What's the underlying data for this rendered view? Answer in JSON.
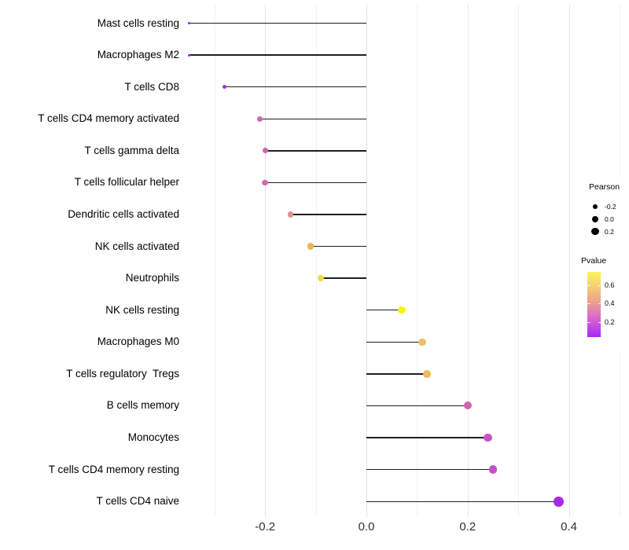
{
  "chart_data": {
    "type": "lollipop",
    "title": "",
    "xlabel": "",
    "ylabel": "",
    "grid": "vertical-only, light gray on white, no panel border, no axis lines",
    "x_axis": {
      "major_ticks": [
        {
          "label": "-0.2",
          "value": -0.2
        },
        {
          "label": "0.0",
          "value": 0.0
        },
        {
          "label": "0.2",
          "value": 0.2
        },
        {
          "label": "0.4",
          "value": 0.4
        }
      ],
      "minor_ticks": [
        -0.3,
        -0.1,
        0.1,
        0.3,
        0.5
      ],
      "xlim": [
        -0.37,
        0.52
      ]
    },
    "rows": [
      {
        "label": "Mast cells resting",
        "pearson": -0.35,
        "pvalue": 0.07,
        "color": "#9B2BE0",
        "radius": 1.4
      },
      {
        "label": "Macrophages M2",
        "pearson": -0.35,
        "pvalue": 0.07,
        "color": "#982BE0",
        "radius": 1.5
      },
      {
        "label": "T cells CD8",
        "pearson": -0.28,
        "pvalue": 0.09,
        "color": "#A032E2",
        "radius": 2.7
      },
      {
        "label": "T cells CD4 memory activated",
        "pearson": -0.21,
        "pvalue": 0.28,
        "color": "#CF64B8",
        "radius": 3.6
      },
      {
        "label": "T cells gamma delta",
        "pearson": -0.2,
        "pvalue": 0.28,
        "color": "#CB62B6",
        "radius": 3.6
      },
      {
        "label": "T cells follicular helper",
        "pearson": -0.2,
        "pvalue": 0.3,
        "color": "#D06CB4",
        "radius": 3.8
      },
      {
        "label": "Dendritic cells activated",
        "pearson": -0.15,
        "pvalue": 0.44,
        "color": "#E2908D",
        "radius": 3.9
      },
      {
        "label": "NK cells activated",
        "pearson": -0.11,
        "pvalue": 0.53,
        "color": "#EBB656",
        "radius": 4.1
      },
      {
        "label": "Neutrophils",
        "pearson": -0.09,
        "pvalue": 0.6,
        "color": "#F2DC3D",
        "radius": 4.2
      },
      {
        "label": "NK cells resting",
        "pearson": 0.07,
        "pvalue": 0.72,
        "color": "#FCF303",
        "radius": 4.6
      },
      {
        "label": "Macrophages M0",
        "pearson": 0.11,
        "pvalue": 0.5,
        "color": "#EFBF63",
        "radius": 4.8
      },
      {
        "label": "T cells regulatory  Tregs",
        "pearson": 0.12,
        "pvalue": 0.49,
        "color": "#EFBA5E",
        "radius": 4.9
      },
      {
        "label": "B cells memory",
        "pearson": 0.2,
        "pvalue": 0.3,
        "color": "#CE66AC",
        "radius": 5.0
      },
      {
        "label": "Monocytes",
        "pearson": 0.24,
        "pvalue": 0.22,
        "color": "#C653C8",
        "radius": 5.3
      },
      {
        "label": "T cells CD4 memory resting",
        "pearson": 0.25,
        "pvalue": 0.2,
        "color": "#C44FCB",
        "radius": 5.3
      },
      {
        "label": "T cells CD4 naive",
        "pearson": 0.38,
        "pvalue": 0.05,
        "color": "#A629E8",
        "radius": 6.4
      }
    ],
    "legend": {
      "pearson": {
        "title": "Pearson",
        "dot_color": "#000000",
        "entries": [
          {
            "label": "-0.2",
            "radius": 3.0
          },
          {
            "label": "0.0",
            "radius": 3.9
          },
          {
            "label": "0.2",
            "radius": 4.6
          }
        ]
      },
      "pvalue": {
        "title": "Pvalue",
        "domain_top": 0.74,
        "domain_bottom": 0.04,
        "ticks": [
          {
            "label": "0.6",
            "value": 0.6
          },
          {
            "label": "0.4",
            "value": 0.4
          },
          {
            "label": "0.2",
            "value": 0.2
          }
        ],
        "gradient_stops": [
          {
            "color": "#FBF55C",
            "pos": 0
          },
          {
            "color": "#F6CE73",
            "pos": 22
          },
          {
            "color": "#ECA18E",
            "pos": 46
          },
          {
            "color": "#DD76C0",
            "pos": 65
          },
          {
            "color": "#C84FDE",
            "pos": 82
          },
          {
            "color": "#A825F2",
            "pos": 100
          }
        ]
      }
    },
    "style_colors": {
      "background": "#ffffff",
      "stem": "#1f1f1f",
      "grid_major": "#e3e3e3",
      "grid_minor": "#f1f1f1",
      "y_label_text": "#000000",
      "x_label_text": "#303030"
    }
  }
}
